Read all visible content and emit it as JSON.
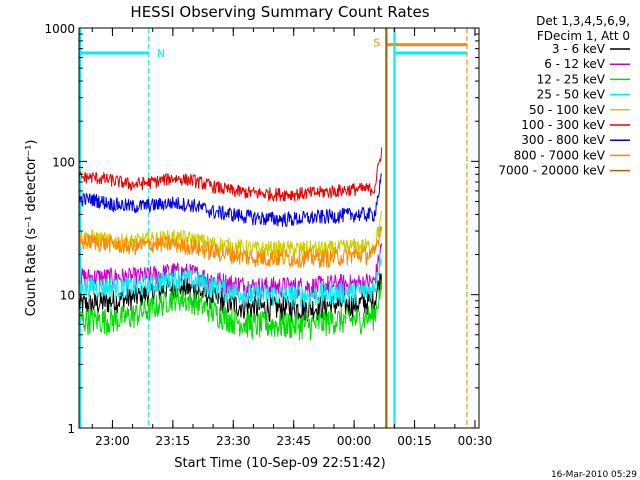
{
  "chart_data": {
    "type": "line",
    "title": "HESSI Observing Summary Count Rates",
    "xlabel": "Start Time (10-Sep-09 22:51:42)",
    "ylabel": "Count Rate (s⁻¹ detector⁻¹)",
    "y_scale": "log",
    "ylim": [
      1,
      1000
    ],
    "xlim": [
      "22:51:42",
      "00:31:00"
    ],
    "grid": false,
    "legend_placement": "top-right, outside plot",
    "x_ticks": [
      "23:00",
      "23:15",
      "23:30",
      "23:45",
      "00:00",
      "00:15",
      "00:30"
    ],
    "y_ticks": [
      "1",
      "10",
      "100",
      "1000"
    ],
    "legend_header": [
      "Det 1,3,4,5,6,9,",
      "FDecim 1, Att 0"
    ],
    "annotations": {
      "night_marker": "N",
      "saa_marker": "S"
    },
    "timestamp": "16-Mar-2010 05:29",
    "series": [
      {
        "name": "3 - 6 keV",
        "color": "#000000",
        "x": [
          "22:55",
          "23:00",
          "23:05",
          "23:10",
          "23:15",
          "23:20",
          "23:25",
          "23:30",
          "23:35",
          "23:40",
          "23:45",
          "23:50",
          "23:55",
          "00:00",
          "00:05",
          "00:07"
        ],
        "values": [
          8.5,
          9.0,
          9.5,
          10.5,
          11.5,
          11.0,
          9.5,
          8.5,
          8.0,
          8.0,
          8.0,
          8.0,
          8.5,
          8.5,
          9.0,
          15
        ]
      },
      {
        "name": "6 - 12 keV",
        "color": "#cc00cc",
        "x": [
          "22:55",
          "23:00",
          "23:05",
          "23:10",
          "23:15",
          "23:20",
          "23:25",
          "23:30",
          "23:35",
          "23:40",
          "23:45",
          "23:50",
          "23:55",
          "00:00",
          "00:05",
          "00:07"
        ],
        "values": [
          13.5,
          13.5,
          13.5,
          14.0,
          15.0,
          14.5,
          13.0,
          12.0,
          11.5,
          11.5,
          11.5,
          11.5,
          12.0,
          12.0,
          12.5,
          25
        ]
      },
      {
        "name": "12 - 25 keV",
        "color": "#00dd00",
        "x": [
          "22:55",
          "23:00",
          "23:05",
          "23:10",
          "23:15",
          "23:20",
          "23:25",
          "23:30",
          "23:35",
          "23:40",
          "23:45",
          "23:50",
          "23:55",
          "00:00",
          "00:05",
          "00:07"
        ],
        "values": [
          6.5,
          6.5,
          7.0,
          8.0,
          9.5,
          9.0,
          7.5,
          6.5,
          6.0,
          6.0,
          6.0,
          6.0,
          6.5,
          6.5,
          7.0,
          12
        ]
      },
      {
        "name": "25 - 50 keV",
        "color": "#00eeee",
        "x": [
          "22:55",
          "23:00",
          "23:05",
          "23:10",
          "23:15",
          "23:20",
          "23:25",
          "23:30",
          "23:35",
          "23:40",
          "23:45",
          "23:50",
          "23:55",
          "00:00",
          "00:05",
          "00:07"
        ],
        "values": [
          11.5,
          11.5,
          11.5,
          12.0,
          13.5,
          13.0,
          11.5,
          10.5,
          10.0,
          10.0,
          10.0,
          10.0,
          10.5,
          10.5,
          11.0,
          22
        ]
      },
      {
        "name": "50 - 100 keV",
        "color": "#cccc00",
        "x": [
          "22:55",
          "23:00",
          "23:05",
          "23:10",
          "23:15",
          "23:20",
          "23:25",
          "23:30",
          "23:35",
          "23:40",
          "23:45",
          "23:50",
          "23:55",
          "00:00",
          "00:05",
          "00:07"
        ],
        "values": [
          27,
          25,
          25,
          26,
          27,
          26,
          24,
          23,
          22,
          22,
          22,
          22,
          22,
          23,
          23,
          40
        ]
      },
      {
        "name": "100 - 300 keV",
        "color": "#ee0000",
        "x": [
          "22:55",
          "23:00",
          "23:05",
          "23:10",
          "23:15",
          "23:20",
          "23:25",
          "23:30",
          "23:35",
          "23:40",
          "23:45",
          "23:50",
          "23:55",
          "00:00",
          "00:05",
          "00:07"
        ],
        "values": [
          76,
          72,
          67,
          70,
          75,
          72,
          65,
          60,
          58,
          57,
          57,
          58,
          60,
          62,
          62,
          130
        ]
      },
      {
        "name": "300 - 800 keV",
        "color": "#0000ee",
        "x": [
          "22:55",
          "23:00",
          "23:05",
          "23:10",
          "23:15",
          "23:20",
          "23:25",
          "23:30",
          "23:35",
          "23:40",
          "23:45",
          "23:50",
          "23:55",
          "00:00",
          "00:05",
          "00:07"
        ],
        "values": [
          52,
          48,
          46,
          47,
          49,
          47,
          42,
          40,
          38,
          37,
          37,
          38,
          39,
          40,
          40,
          80
        ]
      },
      {
        "name": "800 - 7000 keV",
        "color": "#ff8800",
        "x": [
          "22:55",
          "23:00",
          "23:05",
          "23:10",
          "23:15",
          "23:20",
          "23:25",
          "23:30",
          "23:35",
          "23:40",
          "23:45",
          "23:50",
          "23:55",
          "00:00",
          "00:05",
          "00:07"
        ],
        "values": [
          25,
          24,
          23,
          24,
          24,
          23,
          21,
          20,
          19,
          19,
          19,
          19,
          19,
          20,
          20,
          35
        ]
      },
      {
        "name": "7000 - 20000 keV",
        "color": "#996600",
        "x": [],
        "values": []
      }
    ],
    "attenuator_flags": [
      {
        "label": "N",
        "color": "#00eeee",
        "spans": [
          [
            "22:51:42",
            "23:09"
          ],
          [
            "00:10",
            "00:28"
          ]
        ],
        "level": 650
      },
      {
        "label": "S",
        "color": "#ff8800",
        "spans": [
          [
            "00:08",
            "00:28"
          ]
        ],
        "level": 750
      }
    ]
  }
}
